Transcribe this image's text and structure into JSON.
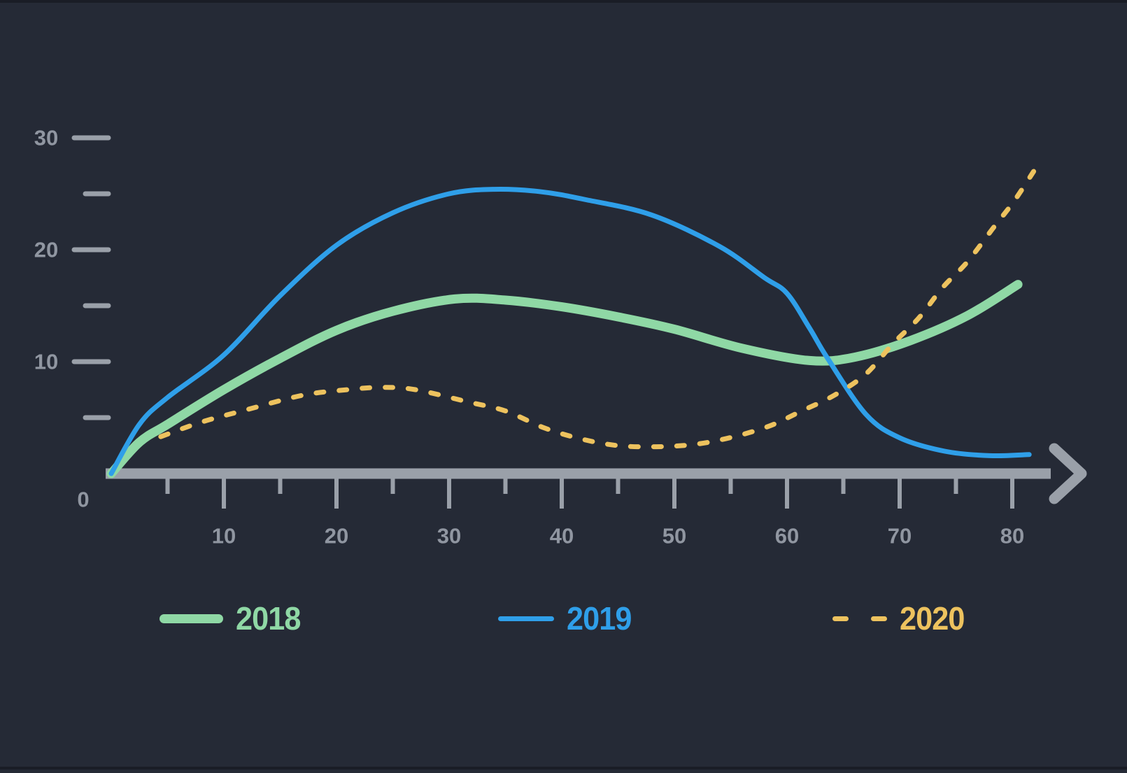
{
  "colors": {
    "background": "#252a36",
    "edge_strip": "#1a1d26",
    "axis": "#9aa0a9",
    "tick_label": "#9096a1"
  },
  "chart_data": {
    "type": "line",
    "title": "",
    "xlabel": "",
    "ylabel": "",
    "xlim": [
      0,
      85
    ],
    "ylim": [
      0,
      30
    ],
    "grid": false,
    "legend_position": "bottom",
    "x_axis": {
      "origin_label": "0",
      "major_ticks": [
        10,
        20,
        30,
        40,
        50,
        60,
        70,
        80
      ],
      "minor_ticks": [
        5,
        15,
        25,
        35,
        45,
        55,
        65,
        75
      ],
      "arrow": true
    },
    "y_axis": {
      "major_ticks": [
        10,
        20,
        30
      ],
      "minor_ticks": [
        5,
        15,
        25
      ]
    },
    "series": [
      {
        "name": "2018",
        "color": "#8fd8a5",
        "style": "solid",
        "stroke_width": 13,
        "points": [
          [
            0,
            0
          ],
          [
            2.5,
            2.8
          ],
          [
            5,
            4.4
          ],
          [
            10,
            7.5
          ],
          [
            15,
            10.3
          ],
          [
            20,
            12.8
          ],
          [
            25,
            14.5
          ],
          [
            30.5,
            15.6
          ],
          [
            35,
            15.5
          ],
          [
            40,
            14.9
          ],
          [
            45,
            14.0
          ],
          [
            50,
            12.9
          ],
          [
            56,
            11.2
          ],
          [
            62,
            10.1
          ],
          [
            66,
            10.4
          ],
          [
            71,
            11.9
          ],
          [
            76,
            14.1
          ],
          [
            80.5,
            16.9
          ]
        ]
      },
      {
        "name": "2019",
        "color": "#2f9fe9",
        "style": "solid",
        "stroke_width": 7,
        "points": [
          [
            0,
            0
          ],
          [
            2.5,
            4.4
          ],
          [
            5,
            6.8
          ],
          [
            10,
            10.6
          ],
          [
            15,
            15.9
          ],
          [
            20,
            20.4
          ],
          [
            25,
            23.3
          ],
          [
            30,
            25.0
          ],
          [
            34,
            25.4
          ],
          [
            38,
            25.2
          ],
          [
            42,
            24.5
          ],
          [
            48,
            23.1
          ],
          [
            54,
            20.3
          ],
          [
            58,
            17.5
          ],
          [
            60,
            16.1
          ],
          [
            62,
            13.0
          ],
          [
            63.6,
            10.3
          ],
          [
            67,
            5.3
          ],
          [
            70,
            3.2
          ],
          [
            74,
            2.0
          ],
          [
            78,
            1.6
          ],
          [
            81.5,
            1.7
          ]
        ]
      },
      {
        "name": "2020",
        "color": "#edc25e",
        "style": "dashed",
        "stroke_width": 7,
        "points": [
          [
            4.4,
            3.3
          ],
          [
            8,
            4.6
          ],
          [
            12,
            5.7
          ],
          [
            17,
            7.0
          ],
          [
            21,
            7.5
          ],
          [
            24,
            7.7
          ],
          [
            27,
            7.5
          ],
          [
            31.7,
            6.4
          ],
          [
            35,
            5.6
          ],
          [
            38.4,
            4.1
          ],
          [
            41.7,
            3.1
          ],
          [
            45,
            2.5
          ],
          [
            48.4,
            2.4
          ],
          [
            51.7,
            2.6
          ],
          [
            54.9,
            3.2
          ],
          [
            58.3,
            4.2
          ],
          [
            61.1,
            5.5
          ],
          [
            64.2,
            7.0
          ],
          [
            67,
            8.9
          ],
          [
            69.4,
            11.6
          ],
          [
            71.7,
            13.9
          ],
          [
            73.8,
            16.6
          ],
          [
            76,
            18.9
          ],
          [
            78.2,
            21.8
          ],
          [
            80.2,
            24.4
          ],
          [
            81.9,
            27.0
          ]
        ]
      }
    ],
    "legend": [
      {
        "label": "2018"
      },
      {
        "label": "2019"
      },
      {
        "label": "2020"
      }
    ]
  }
}
